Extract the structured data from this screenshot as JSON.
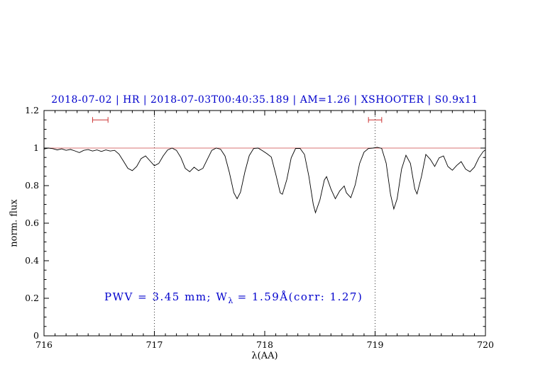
{
  "title": {
    "text": "2018-07-02 | HR | 2018-07-03T00:40:35.189 | AM=1.26 | XSHOOTER | S0.9x11",
    "color": "#0000cd"
  },
  "annotation": {
    "pre": "PWV = 3.45 mm; W",
    "sub": "λ",
    "post": " = 1.59Å(corr: 1.27)",
    "color": "#0000cd"
  },
  "chart_data": {
    "type": "line",
    "title": "2018-07-02 | HR | 2018-07-03T00:40:35.189 | AM=1.26 | XSHOOTER | S0.9x11",
    "xlabel": "λ(AA)",
    "ylabel": "norm. flux",
    "xlim": [
      716,
      720
    ],
    "ylim": [
      0,
      1.2
    ],
    "x_ticks": [
      716,
      717,
      718,
      719,
      720
    ],
    "x_minor_step": 0.1,
    "y_ticks": [
      0,
      0.2,
      0.4,
      0.6,
      0.8,
      1,
      1.2
    ],
    "y_tick_labels": [
      "0",
      "0.2",
      "0.4",
      "0.6",
      "0.8",
      "1",
      "1.2"
    ],
    "y_minor_step": 0.05,
    "grid_vlines": [
      717,
      719
    ],
    "reference_line_y": 1.0,
    "range_markers": [
      {
        "x1": 716.44,
        "x2": 716.58,
        "y": 1.15
      },
      {
        "x1": 718.94,
        "x2": 719.06,
        "y": 1.15
      }
    ],
    "colors": {
      "spectrum": "#000000",
      "reference": "#cc4444",
      "marker": "#cc3333",
      "frame": "#000000",
      "text_accent": "#0000cd"
    },
    "legend": "off",
    "grid": "dotted vertical lines at 717 and 719 only",
    "series": [
      {
        "name": "telluric-spectrum",
        "points": [
          [
            716.0,
            0.995
          ],
          [
            716.04,
            1.0
          ],
          [
            716.08,
            0.997
          ],
          [
            716.12,
            0.99
          ],
          [
            716.16,
            0.996
          ],
          [
            716.2,
            0.988
          ],
          [
            716.24,
            0.993
          ],
          [
            716.28,
            0.985
          ],
          [
            716.32,
            0.976
          ],
          [
            716.36,
            0.988
          ],
          [
            716.4,
            0.992
          ],
          [
            716.44,
            0.984
          ],
          [
            716.48,
            0.99
          ],
          [
            716.52,
            0.982
          ],
          [
            716.56,
            0.99
          ],
          [
            716.6,
            0.984
          ],
          [
            716.64,
            0.988
          ],
          [
            716.68,
            0.968
          ],
          [
            716.72,
            0.93
          ],
          [
            716.76,
            0.892
          ],
          [
            716.8,
            0.88
          ],
          [
            716.84,
            0.902
          ],
          [
            716.88,
            0.944
          ],
          [
            716.92,
            0.958
          ],
          [
            716.96,
            0.932
          ],
          [
            717.0,
            0.906
          ],
          [
            717.04,
            0.918
          ],
          [
            717.08,
            0.958
          ],
          [
            717.12,
            0.99
          ],
          [
            717.16,
            1.0
          ],
          [
            717.2,
            0.988
          ],
          [
            717.24,
            0.95
          ],
          [
            717.28,
            0.892
          ],
          [
            717.32,
            0.874
          ],
          [
            717.36,
            0.898
          ],
          [
            717.4,
            0.88
          ],
          [
            717.44,
            0.892
          ],
          [
            717.48,
            0.94
          ],
          [
            717.52,
            0.988
          ],
          [
            717.56,
            1.0
          ],
          [
            717.6,
            0.994
          ],
          [
            717.64,
            0.958
          ],
          [
            717.68,
            0.87
          ],
          [
            717.72,
            0.762
          ],
          [
            717.75,
            0.73
          ],
          [
            717.78,
            0.764
          ],
          [
            717.82,
            0.872
          ],
          [
            717.86,
            0.96
          ],
          [
            717.9,
            0.998
          ],
          [
            717.94,
            1.0
          ],
          [
            717.98,
            0.986
          ],
          [
            718.02,
            0.97
          ],
          [
            718.06,
            0.952
          ],
          [
            718.1,
            0.86
          ],
          [
            718.14,
            0.762
          ],
          [
            718.16,
            0.754
          ],
          [
            718.2,
            0.832
          ],
          [
            718.24,
            0.948
          ],
          [
            718.28,
            0.998
          ],
          [
            718.32,
            0.998
          ],
          [
            718.36,
            0.966
          ],
          [
            718.4,
            0.85
          ],
          [
            718.44,
            0.7
          ],
          [
            718.46,
            0.656
          ],
          [
            718.5,
            0.724
          ],
          [
            718.54,
            0.83
          ],
          [
            718.56,
            0.848
          ],
          [
            718.6,
            0.782
          ],
          [
            718.64,
            0.73
          ],
          [
            718.68,
            0.772
          ],
          [
            718.72,
            0.798
          ],
          [
            718.74,
            0.762
          ],
          [
            718.78,
            0.736
          ],
          [
            718.82,
            0.804
          ],
          [
            718.86,
            0.918
          ],
          [
            718.9,
            0.978
          ],
          [
            718.94,
            0.998
          ],
          [
            718.98,
            1.0
          ],
          [
            719.02,
            1.004
          ],
          [
            719.06,
            0.998
          ],
          [
            719.1,
            0.92
          ],
          [
            719.14,
            0.752
          ],
          [
            719.17,
            0.676
          ],
          [
            719.2,
            0.73
          ],
          [
            719.24,
            0.888
          ],
          [
            719.28,
            0.962
          ],
          [
            719.32,
            0.918
          ],
          [
            719.36,
            0.782
          ],
          [
            719.38,
            0.756
          ],
          [
            719.42,
            0.848
          ],
          [
            719.46,
            0.966
          ],
          [
            719.5,
            0.94
          ],
          [
            719.54,
            0.902
          ],
          [
            719.58,
            0.948
          ],
          [
            719.62,
            0.958
          ],
          [
            719.66,
            0.902
          ],
          [
            719.7,
            0.882
          ],
          [
            719.74,
            0.908
          ],
          [
            719.78,
            0.928
          ],
          [
            719.82,
            0.888
          ],
          [
            719.86,
            0.874
          ],
          [
            719.9,
            0.898
          ],
          [
            719.94,
            0.948
          ],
          [
            719.98,
            0.982
          ],
          [
            720.0,
            0.99
          ]
        ]
      }
    ]
  }
}
